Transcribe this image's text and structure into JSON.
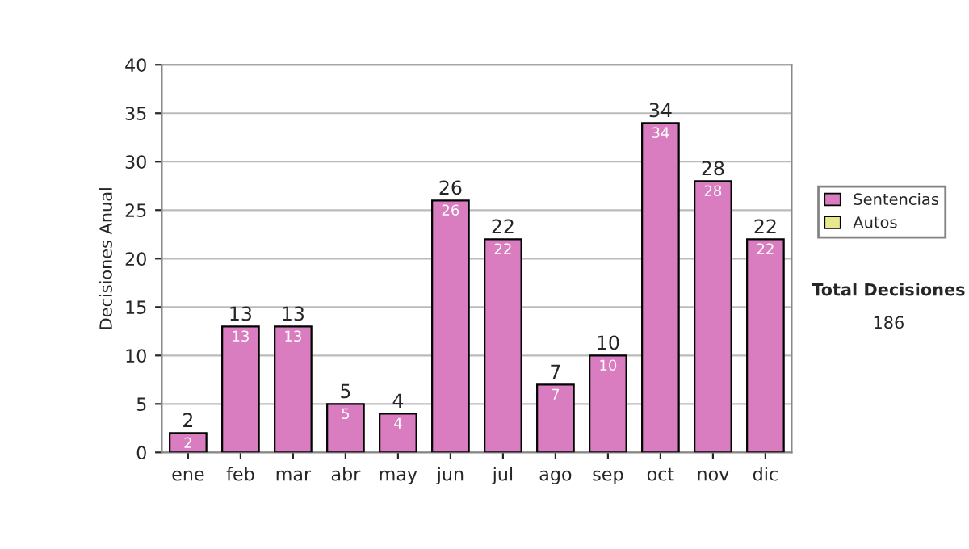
{
  "chart_data": {
    "type": "bar",
    "ylabel": "Decisiones Anual",
    "categories": [
      "ene",
      "feb",
      "mar",
      "abr",
      "may",
      "jun",
      "jul",
      "ago",
      "sep",
      "oct",
      "nov",
      "dic"
    ],
    "series": [
      {
        "name": "Sentencias",
        "color": "#d97dc0",
        "values": [
          2,
          13,
          13,
          5,
          4,
          26,
          22,
          7,
          10,
          34,
          28,
          22
        ],
        "value_labels": [
          "2",
          "13",
          "13",
          "5",
          "4",
          "26",
          "22",
          "7",
          "10",
          "34",
          "28",
          "22"
        ]
      },
      {
        "name": "Autos",
        "color": "#e8e88c",
        "values": [
          null,
          null,
          null,
          null,
          null,
          null,
          null,
          null,
          null,
          null,
          null,
          null
        ]
      }
    ],
    "stacked": true,
    "totals": [
      "2",
      "13",
      "13",
      "5",
      "4",
      "26",
      "22",
      "7",
      "10",
      "34",
      "28",
      "22"
    ],
    "ylim": [
      0,
      40
    ],
    "yticks": [
      0,
      5,
      10,
      15,
      20,
      25,
      30,
      35,
      40
    ],
    "grid": "y",
    "legend": "right",
    "annotations": [
      "Total Decisiones",
      "186"
    ]
  }
}
